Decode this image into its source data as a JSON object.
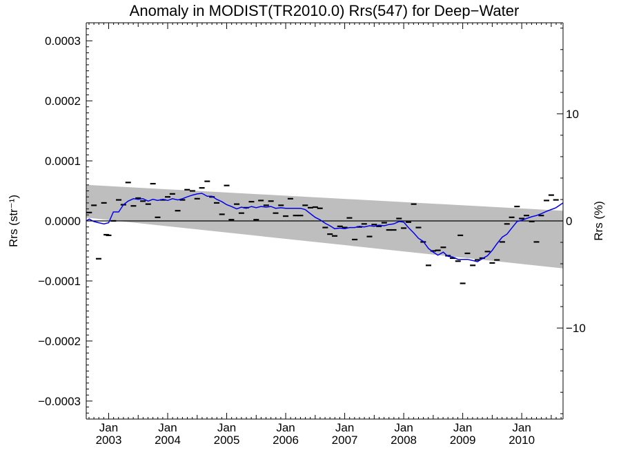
{
  "chart_data": {
    "type": "scatter",
    "title": "Anomaly in MODIST(TR2010.0) Rrs(547) for Deep−Water",
    "ylabel_left": "Rrs (str⁻¹)",
    "ylabel_right": "Rrs (%)",
    "xlim": [
      2002.62,
      2010.7
    ],
    "ylim": [
      -0.00033,
      0.00033
    ],
    "ylim_right": [
      -18.5,
      18.5
    ],
    "left_ticks": [
      {
        "value": 0.0003,
        "label": "0.0003"
      },
      {
        "value": 0.0002,
        "label": "0.0002"
      },
      {
        "value": 0.0001,
        "label": "0.0001"
      },
      {
        "value": 0.0,
        "label": "0.0000"
      },
      {
        "value": -0.0001,
        "label": "−0.0001"
      },
      {
        "value": -0.0002,
        "label": "−0.0002"
      },
      {
        "value": -0.0003,
        "label": "−0.0003"
      }
    ],
    "right_ticks": [
      {
        "value": 10,
        "label": "10"
      },
      {
        "value": 0,
        "label": "0"
      },
      {
        "value": -10,
        "label": "−10"
      }
    ],
    "x_ticks": [
      {
        "value": 2003.0,
        "month": "Jan",
        "year": "2003"
      },
      {
        "value": 2004.0,
        "month": "Jan",
        "year": "2004"
      },
      {
        "value": 2005.0,
        "month": "Jan",
        "year": "2005"
      },
      {
        "value": 2006.0,
        "month": "Jan",
        "year": "2006"
      },
      {
        "value": 2007.0,
        "month": "Jan",
        "year": "2007"
      },
      {
        "value": 2008.0,
        "month": "Jan",
        "year": "2008"
      },
      {
        "value": 2009.0,
        "month": "Jan",
        "year": "2009"
      },
      {
        "value": 2010.0,
        "month": "Jan",
        "year": "2010"
      }
    ],
    "band": {
      "upper": [
        [
          2002.62,
          6e-05
        ],
        [
          2010.7,
          1.7e-05
        ]
      ],
      "lower": [
        [
          2002.62,
          5.5e-06
        ],
        [
          2010.7,
          -7.9e-05
        ]
      ],
      "color": "#bebebe"
    },
    "zero_line": 0,
    "points_color": "#000000",
    "points": [
      [
        2002.67,
        1.4e-05
      ],
      [
        2002.75,
        2.6e-05
      ],
      [
        2002.83,
        -6.3e-05
      ],
      [
        2002.92,
        3e-05
      ],
      [
        2002.96,
        -2.3e-05
      ],
      [
        2003.0,
        -2.4e-05
      ],
      [
        2003.08,
        0.0
      ],
      [
        2003.17,
        3.5e-05
      ],
      [
        2003.25,
        2.7e-05
      ],
      [
        2003.33,
        6.4e-05
      ],
      [
        2003.42,
        2.5e-05
      ],
      [
        2003.5,
        3.8e-05
      ],
      [
        2003.58,
        3.3e-05
      ],
      [
        2003.67,
        2.8e-05
      ],
      [
        2003.75,
        6.2e-05
      ],
      [
        2003.83,
        6e-06
      ],
      [
        2003.92,
        3.5e-05
      ],
      [
        2004.0,
        4e-05
      ],
      [
        2004.08,
        4.5e-05
      ],
      [
        2004.17,
        1.7e-05
      ],
      [
        2004.25,
        3.5e-05
      ],
      [
        2004.33,
        5.2e-05
      ],
      [
        2004.42,
        5e-05
      ],
      [
        2004.5,
        3.7e-05
      ],
      [
        2004.58,
        5.5e-05
      ],
      [
        2004.67,
        6.6e-05
      ],
      [
        2004.75,
        4e-05
      ],
      [
        2004.83,
        3e-05
      ],
      [
        2004.92,
        1.1e-05
      ],
      [
        2005.0,
        5.9e-05
      ],
      [
        2005.08,
        2e-06
      ],
      [
        2005.17,
        2.8e-05
      ],
      [
        2005.25,
        1.3e-05
      ],
      [
        2005.33,
        2.2e-05
      ],
      [
        2005.42,
        3.2e-05
      ],
      [
        2005.5,
        2e-06
      ],
      [
        2005.58,
        3.4e-05
      ],
      [
        2005.67,
        2.6e-05
      ],
      [
        2005.75,
        3.3e-05
      ],
      [
        2005.83,
        1.3e-05
      ],
      [
        2005.92,
        2.6e-05
      ],
      [
        2006.0,
        8e-06
      ],
      [
        2006.08,
        3.7e-05
      ],
      [
        2006.17,
        9e-06
      ],
      [
        2006.25,
        9e-06
      ],
      [
        2006.33,
        2.6e-05
      ],
      [
        2006.42,
        2.2e-05
      ],
      [
        2006.5,
        2.3e-05
      ],
      [
        2006.58,
        2.1e-05
      ],
      [
        2006.67,
        -1.1e-05
      ],
      [
        2006.75,
        -2.2e-05
      ],
      [
        2006.83,
        -2.5e-05
      ],
      [
        2006.92,
        -9e-06
      ],
      [
        2007.0,
        -1.1e-05
      ],
      [
        2007.08,
        5e-06
      ],
      [
        2007.17,
        -3.1e-05
      ],
      [
        2007.25,
        -1e-05
      ],
      [
        2007.33,
        -5e-06
      ],
      [
        2007.42,
        -2.6e-05
      ],
      [
        2007.5,
        -6e-06
      ],
      [
        2007.58,
        -9e-06
      ],
      [
        2007.67,
        -3e-06
      ],
      [
        2007.75,
        -1.5e-05
      ],
      [
        2007.83,
        -1.5e-05
      ],
      [
        2007.92,
        4e-06
      ],
      [
        2008.0,
        -1.2e-05
      ],
      [
        2008.08,
        -2e-06
      ],
      [
        2008.17,
        2.8e-05
      ],
      [
        2008.25,
        -1.1e-05
      ],
      [
        2008.33,
        -3.5e-05
      ],
      [
        2008.42,
        -7.4e-05
      ],
      [
        2008.5,
        -5e-05
      ],
      [
        2008.58,
        -4.9e-05
      ],
      [
        2008.67,
        -4.4e-05
      ],
      [
        2008.75,
        -5.8e-05
      ],
      [
        2008.83,
        -6.2e-05
      ],
      [
        2008.92,
        -6.7e-05
      ],
      [
        2008.96,
        -2.4e-05
      ],
      [
        2009.0,
        -0.000104
      ],
      [
        2009.08,
        -5.4e-05
      ],
      [
        2009.17,
        -7.4e-05
      ],
      [
        2009.25,
        -6.5e-05
      ],
      [
        2009.33,
        -6.2e-05
      ],
      [
        2009.42,
        -5.1e-05
      ],
      [
        2009.5,
        -7e-05
      ],
      [
        2009.58,
        -6.5e-05
      ],
      [
        2009.67,
        -3.5e-05
      ],
      [
        2009.75,
        -5e-06
      ],
      [
        2009.83,
        6e-06
      ],
      [
        2009.92,
        2.4e-05
      ],
      [
        2010.0,
        4e-06
      ],
      [
        2010.08,
        9e-06
      ],
      [
        2010.17,
        -1e-06
      ],
      [
        2010.25,
        -3.5e-05
      ],
      [
        2010.33,
        9e-06
      ],
      [
        2010.42,
        3.4e-05
      ],
      [
        2010.5,
        4.3e-05
      ],
      [
        2010.58,
        3.5e-05
      ]
    ],
    "line_color": "#0000ee",
    "smooth_line": [
      [
        2002.62,
        0.0
      ],
      [
        2002.67,
        3e-06
      ],
      [
        2002.75,
        -1e-06
      ],
      [
        2002.83,
        -3e-06
      ],
      [
        2002.92,
        -5e-06
      ],
      [
        2003.0,
        -3e-06
      ],
      [
        2003.08,
        1.5e-05
      ],
      [
        2003.17,
        1.5e-05
      ],
      [
        2003.25,
        2.7e-05
      ],
      [
        2003.33,
        3.3e-05
      ],
      [
        2003.42,
        3.7e-05
      ],
      [
        2003.5,
        3.6e-05
      ],
      [
        2003.58,
        3.7e-05
      ],
      [
        2003.67,
        3.3e-05
      ],
      [
        2003.75,
        3.6e-05
      ],
      [
        2003.83,
        3.4e-05
      ],
      [
        2003.92,
        3.6e-05
      ],
      [
        2004.0,
        3.4e-05
      ],
      [
        2004.08,
        3.7e-05
      ],
      [
        2004.17,
        3.5e-05
      ],
      [
        2004.25,
        3.7e-05
      ],
      [
        2004.33,
        4e-05
      ],
      [
        2004.42,
        4.3e-05
      ],
      [
        2004.5,
        4.5e-05
      ],
      [
        2004.58,
        4.6e-05
      ],
      [
        2004.67,
        4.1e-05
      ],
      [
        2004.75,
        4.1e-05
      ],
      [
        2004.83,
        3.6e-05
      ],
      [
        2004.92,
        3.2e-05
      ],
      [
        2005.0,
        2.7e-05
      ],
      [
        2005.08,
        2.4e-05
      ],
      [
        2005.17,
        2e-05
      ],
      [
        2005.25,
        2.3e-05
      ],
      [
        2005.33,
        2.1e-05
      ],
      [
        2005.42,
        2.4e-05
      ],
      [
        2005.5,
        2.2e-05
      ],
      [
        2005.58,
        2.4e-05
      ],
      [
        2005.67,
        2.3e-05
      ],
      [
        2005.75,
        2.4e-05
      ],
      [
        2005.83,
        2.1e-05
      ],
      [
        2005.92,
        2.2e-05
      ],
      [
        2006.0,
        2.1e-05
      ],
      [
        2006.08,
        2.1e-05
      ],
      [
        2006.17,
        2.1e-05
      ],
      [
        2006.25,
        2.1e-05
      ],
      [
        2006.33,
        1.9e-05
      ],
      [
        2006.42,
        1.2e-05
      ],
      [
        2006.5,
        6e-06
      ],
      [
        2006.58,
        2e-06
      ],
      [
        2006.67,
        -4e-06
      ],
      [
        2006.75,
        -8e-06
      ],
      [
        2006.83,
        -1.3e-05
      ],
      [
        2006.92,
        -1.2e-05
      ],
      [
        2007.0,
        -1.3e-05
      ],
      [
        2007.08,
        -1.1e-05
      ],
      [
        2007.17,
        -1.1e-05
      ],
      [
        2007.25,
        -9e-06
      ],
      [
        2007.33,
        -1e-05
      ],
      [
        2007.42,
        -8e-06
      ],
      [
        2007.5,
        -9e-06
      ],
      [
        2007.58,
        -7e-06
      ],
      [
        2007.67,
        -8e-06
      ],
      [
        2007.75,
        -6e-06
      ],
      [
        2007.83,
        -5e-06
      ],
      [
        2007.92,
        -1e-06
      ],
      [
        2008.0,
        -2e-06
      ],
      [
        2008.08,
        -1.1e-05
      ],
      [
        2008.17,
        -2e-05
      ],
      [
        2008.25,
        -2.9e-05
      ],
      [
        2008.33,
        -3.4e-05
      ],
      [
        2008.42,
        -4.6e-05
      ],
      [
        2008.5,
        -5.2e-05
      ],
      [
        2008.58,
        -5.7e-05
      ],
      [
        2008.67,
        -5.2e-05
      ],
      [
        2008.75,
        -5.9e-05
      ],
      [
        2008.83,
        -6e-05
      ],
      [
        2008.92,
        -6.4e-05
      ],
      [
        2009.0,
        -6.4e-05
      ],
      [
        2009.08,
        -6.4e-05
      ],
      [
        2009.17,
        -6.6e-05
      ],
      [
        2009.25,
        -6.8e-05
      ],
      [
        2009.33,
        -6.3e-05
      ],
      [
        2009.42,
        -5.8e-05
      ],
      [
        2009.5,
        -4.9e-05
      ],
      [
        2009.58,
        -3.8e-05
      ],
      [
        2009.67,
        -2.7e-05
      ],
      [
        2009.75,
        -2.2e-05
      ],
      [
        2009.83,
        -1.2e-05
      ],
      [
        2009.92,
        -1e-06
      ],
      [
        2010.0,
        1e-06
      ],
      [
        2010.08,
        4e-06
      ],
      [
        2010.17,
        7e-06
      ],
      [
        2010.25,
        9e-06
      ],
      [
        2010.33,
        1.2e-05
      ],
      [
        2010.42,
        1.6e-05
      ],
      [
        2010.5,
        1.9e-05
      ],
      [
        2010.58,
        2.2e-05
      ],
      [
        2010.7,
        3e-05
      ]
    ],
    "grid": false,
    "legend": "none"
  }
}
